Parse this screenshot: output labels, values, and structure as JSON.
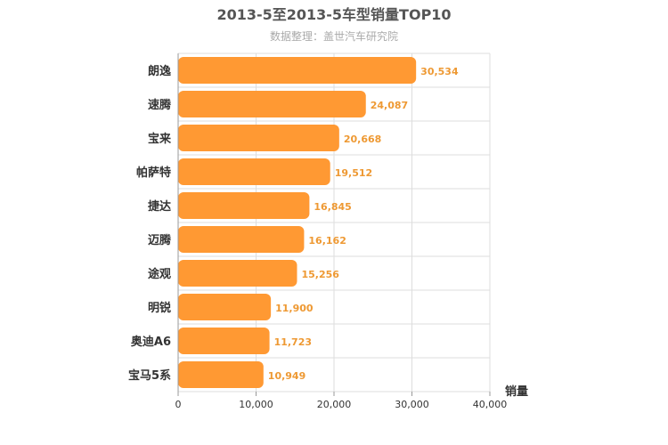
{
  "chart_data": {
    "type": "bar",
    "orientation": "horizontal",
    "title": "2013-5至2013-5车型销量TOP10",
    "subtitle": "数据整理：盖世汽车研究院",
    "xlabel": "销量",
    "categories": [
      "朗逸",
      "速腾",
      "宝来",
      "帕萨特",
      "捷达",
      "迈腾",
      "途观",
      "明锐",
      "奥迪A6",
      "宝马5系"
    ],
    "values": [
      30534,
      24087,
      20668,
      19512,
      16845,
      16162,
      15256,
      11900,
      11723,
      10949
    ],
    "value_labels": [
      "30,534",
      "24,087",
      "20,668",
      "19,512",
      "16,845",
      "16,162",
      "15,256",
      "11,900",
      "11,723",
      "10,949"
    ],
    "xlim": [
      0,
      40000
    ],
    "ticks": [
      0,
      10000,
      20000,
      30000,
      40000
    ],
    "tick_labels": [
      "0",
      "10,000",
      "20,000",
      "30,000",
      "40,000"
    ],
    "grid": true,
    "legend": "none",
    "bar_color": "#ff9933",
    "label_color": "#ee9933"
  }
}
